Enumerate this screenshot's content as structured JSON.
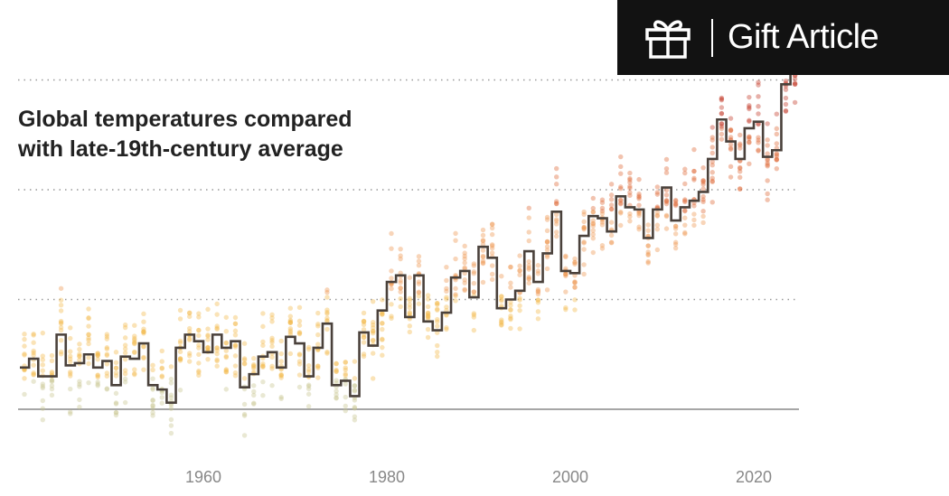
{
  "gift_button": {
    "label": "Gift Article",
    "icon": "gift-icon",
    "background": "#121212"
  },
  "chart_data": {
    "type": "line",
    "title": "Global temperatures compared with late-19th-century average",
    "title_lines": [
      "Global temperatures compared",
      "with late-19th-century average"
    ],
    "xlabel": "",
    "ylabel": "",
    "xlim": [
      1940,
      2025
    ],
    "ylim": [
      -0.2,
      1.55
    ],
    "x_ticks": [
      1960,
      1980,
      2000,
      2020
    ],
    "x_tick_labels": [
      "1960",
      "1980",
      "2000",
      "2020"
    ],
    "y_gridlines": [
      0,
      0.5,
      1.0,
      1.5
    ],
    "grid": "horizontal dotted, solid baseline at 0",
    "series": [
      {
        "style": "step line (annual average)",
        "color": "#4a413b",
        "x": [
          1940,
          1941,
          1942,
          1943,
          1944,
          1945,
          1946,
          1947,
          1948,
          1949,
          1950,
          1951,
          1952,
          1953,
          1954,
          1955,
          1956,
          1957,
          1958,
          1959,
          1960,
          1961,
          1962,
          1963,
          1964,
          1965,
          1966,
          1967,
          1968,
          1969,
          1970,
          1971,
          1972,
          1973,
          1974,
          1975,
          1976,
          1977,
          1978,
          1979,
          1980,
          1981,
          1982,
          1983,
          1984,
          1985,
          1986,
          1987,
          1988,
          1989,
          1990,
          1991,
          1992,
          1993,
          1994,
          1995,
          1996,
          1997,
          1998,
          1999,
          2000,
          2001,
          2002,
          2003,
          2004,
          2005,
          2006,
          2007,
          2008,
          2009,
          2010,
          2011,
          2012,
          2013,
          2014,
          2015,
          2016,
          2017,
          2018,
          2019,
          2020,
          2021,
          2022,
          2023,
          2024
        ],
        "y": [
          0.19,
          0.23,
          0.15,
          0.15,
          0.34,
          0.2,
          0.21,
          0.25,
          0.19,
          0.22,
          0.11,
          0.24,
          0.23,
          0.3,
          0.11,
          0.09,
          0.03,
          0.28,
          0.34,
          0.31,
          0.26,
          0.34,
          0.28,
          0.31,
          0.1,
          0.16,
          0.24,
          0.26,
          0.19,
          0.33,
          0.3,
          0.15,
          0.28,
          0.39,
          0.11,
          0.13,
          0.06,
          0.35,
          0.29,
          0.45,
          0.58,
          0.61,
          0.42,
          0.61,
          0.4,
          0.36,
          0.44,
          0.6,
          0.63,
          0.51,
          0.74,
          0.69,
          0.46,
          0.5,
          0.54,
          0.72,
          0.58,
          0.71,
          0.9,
          0.63,
          0.62,
          0.79,
          0.88,
          0.87,
          0.81,
          0.97,
          0.92,
          0.91,
          0.78,
          0.91,
          1.01,
          0.86,
          0.92,
          0.95,
          0.99,
          1.14,
          1.32,
          1.22,
          1.14,
          1.28,
          1.31,
          1.15,
          1.18,
          1.48,
          1.54
        ]
      },
      {
        "style": "scatter (monthly values, translucent dots colored by anomaly)",
        "color_scale": [
          "#c8c590",
          "#f2b84a",
          "#ee9650",
          "#de6a38",
          "#c43a28"
        ]
      }
    ]
  }
}
